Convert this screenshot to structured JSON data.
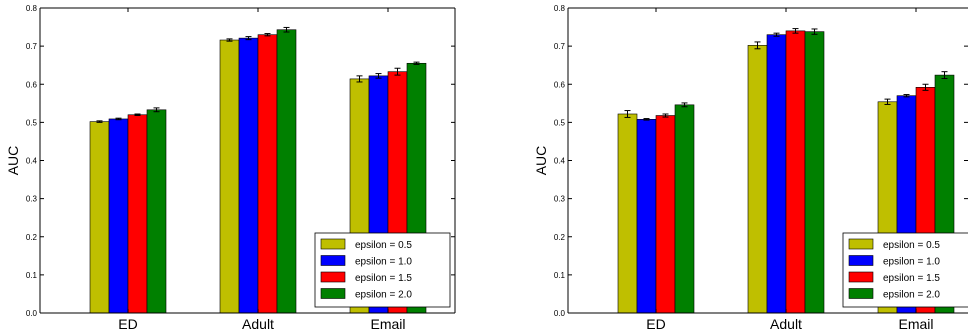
{
  "colors": {
    "series": [
      "#bfbf00",
      "#0000ff",
      "#ff0000",
      "#008000"
    ]
  },
  "chart_data": [
    {
      "type": "bar",
      "title": "",
      "xlabel": "",
      "ylabel": "AUC",
      "ylim": [
        0,
        0.8
      ],
      "yticks": [
        "0.0",
        "0.1",
        "0.2",
        "0.3",
        "0.4",
        "0.5",
        "0.6",
        "0.7",
        "0.8"
      ],
      "categories": [
        "ED",
        "Adult",
        "Email"
      ],
      "legend_position": "bottom-right",
      "error_bars": true,
      "series": [
        {
          "name": "epsilon = 0.5",
          "values": [
            0.502,
            0.716,
            0.614
          ],
          "errors": [
            0.002,
            0.003,
            0.008
          ]
        },
        {
          "name": "epsilon = 1.0",
          "values": [
            0.509,
            0.721,
            0.622
          ],
          "errors": [
            0.002,
            0.004,
            0.006
          ]
        },
        {
          "name": "epsilon = 1.5",
          "values": [
            0.52,
            0.73,
            0.633
          ],
          "errors": [
            0.002,
            0.003,
            0.009
          ]
        },
        {
          "name": "epsilon = 2.0",
          "values": [
            0.533,
            0.743,
            0.655
          ],
          "errors": [
            0.005,
            0.006,
            0.003
          ]
        }
      ]
    },
    {
      "type": "bar",
      "title": "",
      "xlabel": "",
      "ylabel": "AUC",
      "ylim": [
        0,
        0.8
      ],
      "yticks": [
        "0.0",
        "0.1",
        "0.2",
        "0.3",
        "0.4",
        "0.5",
        "0.6",
        "0.7",
        "0.8"
      ],
      "categories": [
        "ED",
        "Adult",
        "Email"
      ],
      "legend_position": "bottom-right",
      "error_bars": true,
      "series": [
        {
          "name": "epsilon = 0.5",
          "values": [
            0.522,
            0.702,
            0.554
          ],
          "errors": [
            0.009,
            0.009,
            0.007
          ]
        },
        {
          "name": "epsilon = 1.0",
          "values": [
            0.508,
            0.73,
            0.57
          ],
          "errors": [
            0.002,
            0.004,
            0.003
          ]
        },
        {
          "name": "epsilon = 1.5",
          "values": [
            0.518,
            0.74,
            0.592
          ],
          "errors": [
            0.004,
            0.006,
            0.008
          ]
        },
        {
          "name": "epsilon = 2.0",
          "values": [
            0.546,
            0.738,
            0.624
          ],
          "errors": [
            0.005,
            0.007,
            0.009
          ]
        }
      ]
    }
  ]
}
